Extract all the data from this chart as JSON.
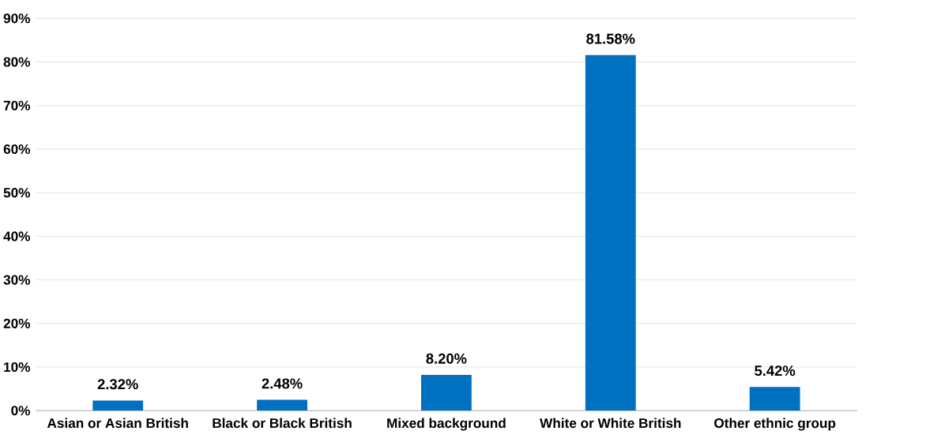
{
  "chart_data": {
    "type": "bar",
    "categories": [
      "Asian or Asian British",
      "Black or Black British",
      "Mixed background",
      "White or White British",
      "Other ethnic group"
    ],
    "values": [
      2.32,
      2.48,
      8.2,
      81.58,
      5.42
    ],
    "value_labels": [
      "2.32%",
      "2.48%",
      "8.20%",
      "81.58%",
      "5.42%"
    ],
    "color": "#0070c0",
    "ylim": [
      0,
      90
    ],
    "yticks": [
      {
        "value": 0,
        "label": "0%"
      },
      {
        "value": 10,
        "label": "10%"
      },
      {
        "value": 20,
        "label": "20%"
      },
      {
        "value": 30,
        "label": "30%"
      },
      {
        "value": 40,
        "label": "40%"
      },
      {
        "value": 50,
        "label": "50%"
      },
      {
        "value": 60,
        "label": "60%"
      },
      {
        "value": 70,
        "label": "70%"
      },
      {
        "value": 80,
        "label": "80%"
      },
      {
        "value": 90,
        "label": "90%"
      }
    ],
    "grid": "y"
  }
}
